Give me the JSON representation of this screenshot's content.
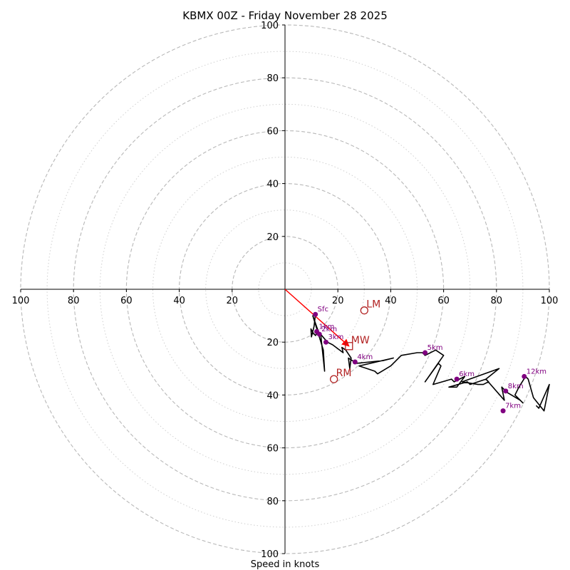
{
  "chart_data": {
    "type": "hodograph",
    "title": "KBMX 00Z - Friday November 28 2025",
    "xlabel": "Speed in knots",
    "axis_range": [
      -100,
      100
    ],
    "ring_major": [
      20,
      40,
      60,
      80,
      100
    ],
    "ring_minor": [
      10,
      30,
      50,
      70,
      90
    ],
    "x_tick_labels": [
      "100",
      "80",
      "60",
      "40",
      "20",
      "20",
      "40",
      "60",
      "80",
      "100"
    ],
    "x_tick_values": [
      -100,
      -80,
      -60,
      -40,
      -20,
      20,
      40,
      60,
      80,
      100
    ],
    "y_tick_labels_upper": [
      "20",
      "40",
      "60",
      "80",
      "100"
    ],
    "y_tick_values_upper": [
      20,
      40,
      60,
      80,
      100
    ],
    "y_tick_labels_lower": [
      "20",
      "40",
      "60",
      "80",
      "100"
    ],
    "y_tick_values_lower": [
      -20,
      -40,
      -60,
      -80,
      -100
    ],
    "trace": [
      [
        11.5,
        -9.5
      ],
      [
        11,
        -14
      ],
      [
        10,
        -18
      ],
      [
        9.8,
        -15
      ],
      [
        10.8,
        -16.8
      ],
      [
        11.6,
        -17.5
      ],
      [
        12.4,
        -16
      ],
      [
        13,
        -17
      ],
      [
        10.5,
        -10
      ],
      [
        14.5,
        -23
      ],
      [
        15,
        -31
      ],
      [
        13.5,
        -17
      ],
      [
        16,
        -20
      ],
      [
        18,
        -21
      ],
      [
        22,
        -24
      ],
      [
        21.5,
        -22
      ],
      [
        23,
        -23
      ],
      [
        25,
        -26
      ],
      [
        24.5,
        -30
      ],
      [
        24,
        -26
      ],
      [
        27,
        -28
      ],
      [
        37,
        -27
      ],
      [
        41,
        -26
      ],
      [
        28,
        -29
      ],
      [
        34,
        -31
      ],
      [
        35,
        -32
      ],
      [
        40,
        -29
      ],
      [
        44,
        -25
      ],
      [
        50,
        -24
      ],
      [
        52,
        -24
      ],
      [
        53,
        -25
      ],
      [
        57,
        -23
      ],
      [
        60,
        -25
      ],
      [
        53,
        -35
      ],
      [
        58,
        -28
      ],
      [
        59,
        -29
      ],
      [
        56,
        -36
      ],
      [
        63,
        -34
      ],
      [
        64,
        -35
      ],
      [
        68,
        -33
      ],
      [
        65,
        -37
      ],
      [
        62,
        -37
      ],
      [
        69,
        -35
      ],
      [
        70,
        -36
      ],
      [
        76,
        -34
      ],
      [
        81,
        -30
      ],
      [
        67,
        -35
      ],
      [
        73,
        -36
      ],
      [
        75,
        -36
      ],
      [
        76,
        -35.5
      ],
      [
        77,
        -35
      ],
      [
        76,
        -34
      ],
      [
        83,
        -42
      ],
      [
        82,
        -37
      ],
      [
        84,
        -39
      ],
      [
        89,
        -42
      ],
      [
        90,
        -43
      ],
      [
        87,
        -40
      ],
      [
        88.5,
        -37
      ],
      [
        91,
        -33
      ],
      [
        92,
        -34
      ],
      [
        94,
        -41
      ],
      [
        98,
        -46
      ],
      [
        100,
        -36
      ],
      [
        96,
        -45
      ],
      [
        95,
        -44
      ]
    ],
    "height_markers": [
      {
        "label": "Sfc",
        "u": 11.5,
        "v": -9.5
      },
      {
        "label": "1km",
        "u": 12,
        "v": -16
      },
      {
        "label": "2km",
        "u": 13,
        "v": -17
      },
      {
        "label": "3km",
        "u": 15.5,
        "v": -20
      },
      {
        "label": "4km",
        "u": 26.5,
        "v": -27.5
      },
      {
        "label": "5km",
        "u": 53,
        "v": -24
      },
      {
        "label": "6km",
        "u": 65,
        "v": -34
      },
      {
        "label": "7km",
        "u": 82.5,
        "v": -46
      },
      {
        "label": "8km",
        "u": 83.5,
        "v": -38.5
      },
      {
        "label": "12km",
        "u": 90.5,
        "v": -33
      }
    ],
    "storm_motions": [
      {
        "label": "LM",
        "u": 30,
        "v": -8,
        "marker": "circle"
      },
      {
        "label": "MW",
        "u": 24.2,
        "v": -21.5,
        "marker": "square"
      },
      {
        "label": "RM",
        "u": 18.5,
        "v": -34,
        "marker": "circle"
      }
    ],
    "mean_wind_arrow": {
      "u": 24.2,
      "v": -21.5
    },
    "colors": {
      "trace": "#000000",
      "marker": "#800080",
      "storm": "#b22222",
      "arrow": "#ff0000",
      "ring": "#b8b8b8",
      "axis": "#000000"
    }
  }
}
